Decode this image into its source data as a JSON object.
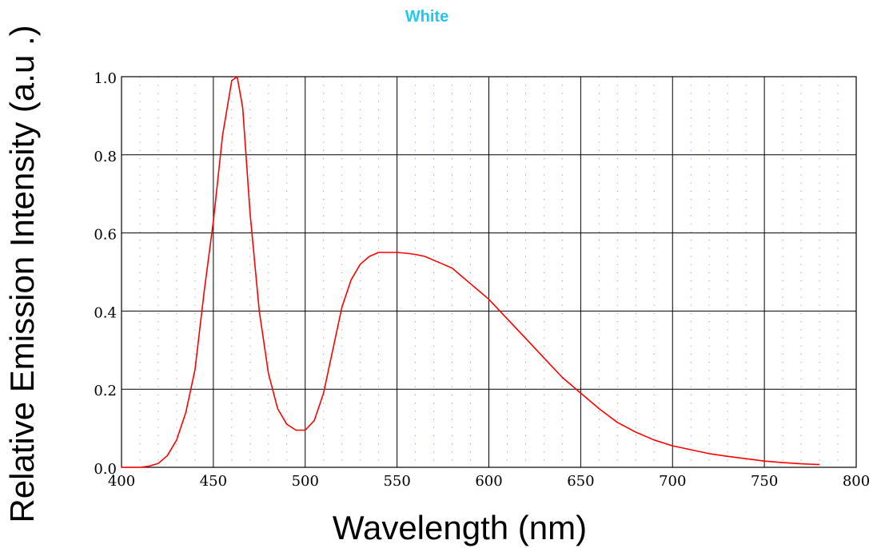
{
  "chart_data": {
    "type": "line",
    "title": "White",
    "xlabel": "Wavelength (nm)",
    "ylabel": "Relative Emission Intensity (a.u .)",
    "xlim": [
      400,
      800
    ],
    "ylim": [
      0,
      1.0
    ],
    "x_ticks": [
      {
        "value": 400,
        "label": "400"
      },
      {
        "value": 450,
        "label": "450"
      },
      {
        "value": 500,
        "label": "500"
      },
      {
        "value": 550,
        "label": "550"
      },
      {
        "value": 600,
        "label": "600"
      },
      {
        "value": 650,
        "label": "650"
      },
      {
        "value": 700,
        "label": "700"
      },
      {
        "value": 750,
        "label": "750"
      },
      {
        "value": 800,
        "label": "800"
      }
    ],
    "y_ticks": [
      {
        "value": 0.0,
        "label": "0.0"
      },
      {
        "value": 0.2,
        "label": "0.2"
      },
      {
        "value": 0.4,
        "label": "0.4"
      },
      {
        "value": 0.6,
        "label": "0.6"
      },
      {
        "value": 0.8,
        "label": "0.8"
      },
      {
        "value": 1.0,
        "label": "1.0"
      }
    ],
    "grid": true,
    "minor_grid": "dotted",
    "colors": {
      "title": "#1ec8f0",
      "series": "#ff0000",
      "grid_major": "#000000",
      "grid_minor": "#8899cc"
    },
    "series": [
      {
        "x": [
          400,
          405,
          410,
          415,
          420,
          425,
          430,
          435,
          440,
          445,
          450,
          455,
          460,
          463,
          466,
          470,
          475,
          480,
          485,
          490,
          495,
          500,
          505,
          510,
          515,
          520,
          525,
          530,
          535,
          540,
          545,
          550,
          555,
          560,
          565,
          570,
          575,
          580,
          585,
          590,
          595,
          600,
          610,
          620,
          630,
          640,
          650,
          660,
          670,
          680,
          690,
          700,
          710,
          720,
          730,
          740,
          750,
          760,
          770,
          780
        ],
        "y": [
          0.0,
          0.0,
          0.0,
          0.003,
          0.01,
          0.03,
          0.07,
          0.14,
          0.25,
          0.45,
          0.63,
          0.85,
          0.99,
          1.0,
          0.92,
          0.65,
          0.4,
          0.24,
          0.15,
          0.11,
          0.095,
          0.095,
          0.12,
          0.19,
          0.3,
          0.41,
          0.48,
          0.52,
          0.54,
          0.55,
          0.55,
          0.55,
          0.548,
          0.545,
          0.54,
          0.53,
          0.52,
          0.51,
          0.49,
          0.47,
          0.45,
          0.43,
          0.38,
          0.33,
          0.28,
          0.23,
          0.19,
          0.15,
          0.115,
          0.09,
          0.07,
          0.055,
          0.045,
          0.035,
          0.028,
          0.022,
          0.016,
          0.012,
          0.009,
          0.007
        ]
      }
    ]
  }
}
